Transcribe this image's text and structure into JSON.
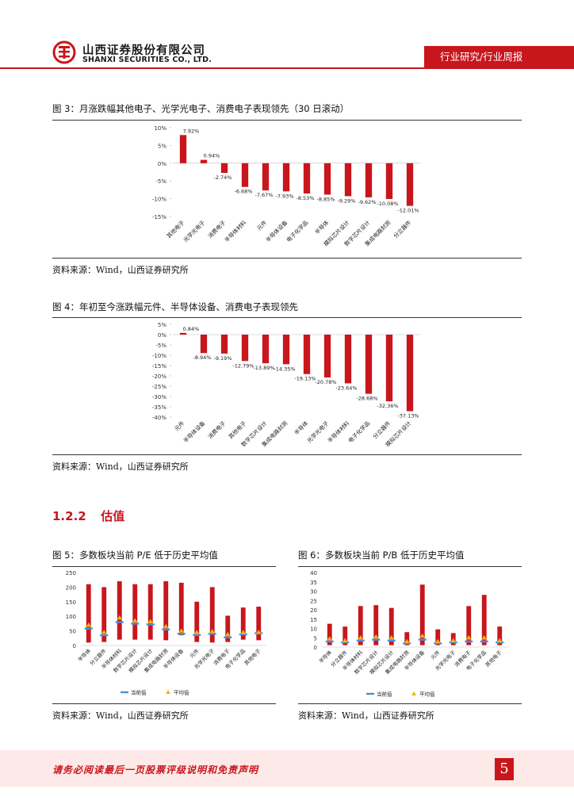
{
  "header": {
    "company_cn": "山西证券股份有限公司",
    "company_en": "SHANXI SECURITIES CO., LTD.",
    "tag": "行业研究/行业周报",
    "brand_color": "#c8161d"
  },
  "fig3": {
    "title": "图 3：月涨跌幅其他电子、光学光电子、消费电子表现领先（30 日滚动）",
    "source": "资料来源：Wind，山西证券研究所"
  },
  "fig4": {
    "title": "图 4：年初至今涨跌幅元件、半导体设备、消费电子表现领先",
    "source": "资料来源：Wind，山西证券研究所"
  },
  "section": {
    "number": "1.2.2",
    "title": "估值"
  },
  "fig5": {
    "title": "图 5：多数板块当前 P/E 低于历史平均值",
    "source": "资料来源：Wind，山西证券研究所"
  },
  "fig6": {
    "title": "图 6：多数板块当前 P/B 低于历史平均值",
    "source": "资料来源：Wind，山西证券研究所"
  },
  "footer": {
    "disclaimer": "请务必阅读最后一页股票评级说明和免责声明",
    "page": "5"
  },
  "chart_data": [
    {
      "id": "fig3",
      "type": "bar",
      "categories": [
        "其他电子",
        "光学光电子",
        "消费电子",
        "半导体材料",
        "元件",
        "半导体设备",
        "电子化学品",
        "半导体",
        "模拟芯片设计",
        "数字芯片设计",
        "集成电路封测",
        "分立器件"
      ],
      "values": [
        7.92,
        0.94,
        -2.74,
        -6.68,
        -7.67,
        -7.93,
        -8.53,
        -8.85,
        -9.29,
        -9.62,
        -10.08,
        -12.01
      ],
      "value_labels": [
        "7.92%",
        "0.94%",
        "-2.74%",
        "-6.68%",
        "-7.67%",
        "-7.93%",
        "-8.53%",
        "-8.85%",
        "-9.29%",
        "-9.62%",
        "-10.08%",
        "-12.01%"
      ],
      "yticks": [
        "10%",
        "5%",
        "0%",
        "-5%",
        "-10%",
        "-15%"
      ],
      "ylim": [
        -15,
        10
      ],
      "bar_color": "#c8161d"
    },
    {
      "id": "fig4",
      "type": "bar",
      "categories": [
        "元件",
        "半导体设备",
        "消费电子",
        "其他电子",
        "数字芯片设计",
        "集成电路封测",
        "半导体",
        "光学光电子",
        "半导体材料",
        "电子化学品",
        "分立器件",
        "模拟芯片设计"
      ],
      "values": [
        0.84,
        -8.94,
        -9.19,
        -12.79,
        -13.89,
        -14.35,
        -19.13,
        -20.78,
        -23.64,
        -28.68,
        -32.36,
        -37.13
      ],
      "value_labels": [
        "0.84%",
        "-8.94%",
        "-9.19%",
        "-12.79%",
        "-13.89%",
        "-14.35%",
        "-19.13%",
        "-20.78%",
        "-23.64%",
        "-28.68%",
        "-32.36%",
        "-37.13%"
      ],
      "yticks": [
        "5%",
        "0%",
        "-5%",
        "-10%",
        "-15%",
        "-20%",
        "-25%",
        "-30%",
        "-35%",
        "-40%"
      ],
      "ylim": [
        -40,
        5
      ],
      "bar_color": "#c8161d"
    },
    {
      "id": "fig5",
      "type": "bar",
      "categories": [
        "半导体",
        "分立器件",
        "半导体材料",
        "数字芯片设计",
        "模拟芯片设计",
        "集成电路封测",
        "半导体设备",
        "元件",
        "光学光电子",
        "消费电子",
        "电子化学品",
        "其他电子"
      ],
      "series": [
        {
          "name": "当前值",
          "type": "floating-bar",
          "low": [
            10,
            12,
            20,
            20,
            20,
            18,
            35,
            12,
            10,
            12,
            20,
            18
          ],
          "high": [
            210,
            200,
            220,
            210,
            210,
            220,
            215,
            150,
            200,
            102,
            130,
            133
          ],
          "color": "#c8161d"
        },
        {
          "name": "当前值",
          "type": "marker",
          "values": [
            58,
            35,
            80,
            75,
            72,
            55,
            40,
            36,
            40,
            28,
            38,
            42
          ],
          "color": "#4a90d9"
        },
        {
          "name": "平均值",
          "type": "marker",
          "values": [
            70,
            45,
            95,
            85,
            82,
            65,
            50,
            45,
            48,
            38,
            45,
            45
          ],
          "color": "#f2b705"
        }
      ],
      "legend": [
        "当前值",
        "平均值"
      ],
      "yticks": [
        "250",
        "200",
        "150",
        "100",
        "50",
        "0"
      ],
      "ylim": [
        0,
        250
      ]
    },
    {
      "id": "fig6",
      "type": "bar",
      "categories": [
        "半导体",
        "分立器件",
        "半导体材料",
        "数字芯片设计",
        "模拟芯片设计",
        "集成电路封测",
        "半导体设备",
        "元件",
        "光学光电子",
        "消费电子",
        "电子化学品",
        "其他电子"
      ],
      "series": [
        {
          "name": "当前值",
          "type": "floating-bar",
          "low": [
            1,
            1,
            1,
            1,
            1,
            1,
            1,
            1,
            1,
            1,
            1,
            1
          ],
          "high": [
            12.5,
            11,
            22,
            22.5,
            21,
            8,
            33.5,
            9.5,
            7.5,
            22,
            28,
            11
          ],
          "color": "#c8161d"
        },
        {
          "name": "当前值",
          "type": "marker",
          "values": [
            3,
            2.5,
            3.5,
            4,
            3.5,
            2,
            4,
            2,
            2.5,
            3,
            3,
            2.5
          ],
          "color": "#4a90d9"
        },
        {
          "name": "平均值",
          "type": "marker",
          "values": [
            4.5,
            3.5,
            5,
            5.5,
            5,
            3,
            6,
            3,
            3.5,
            5,
            5,
            3.5
          ],
          "color": "#f2b705"
        }
      ],
      "legend": [
        "当前值",
        "平均值"
      ],
      "yticks": [
        "40",
        "35",
        "30",
        "25",
        "20",
        "15",
        "10",
        "5",
        "0"
      ],
      "ylim": [
        0,
        40
      ]
    }
  ]
}
